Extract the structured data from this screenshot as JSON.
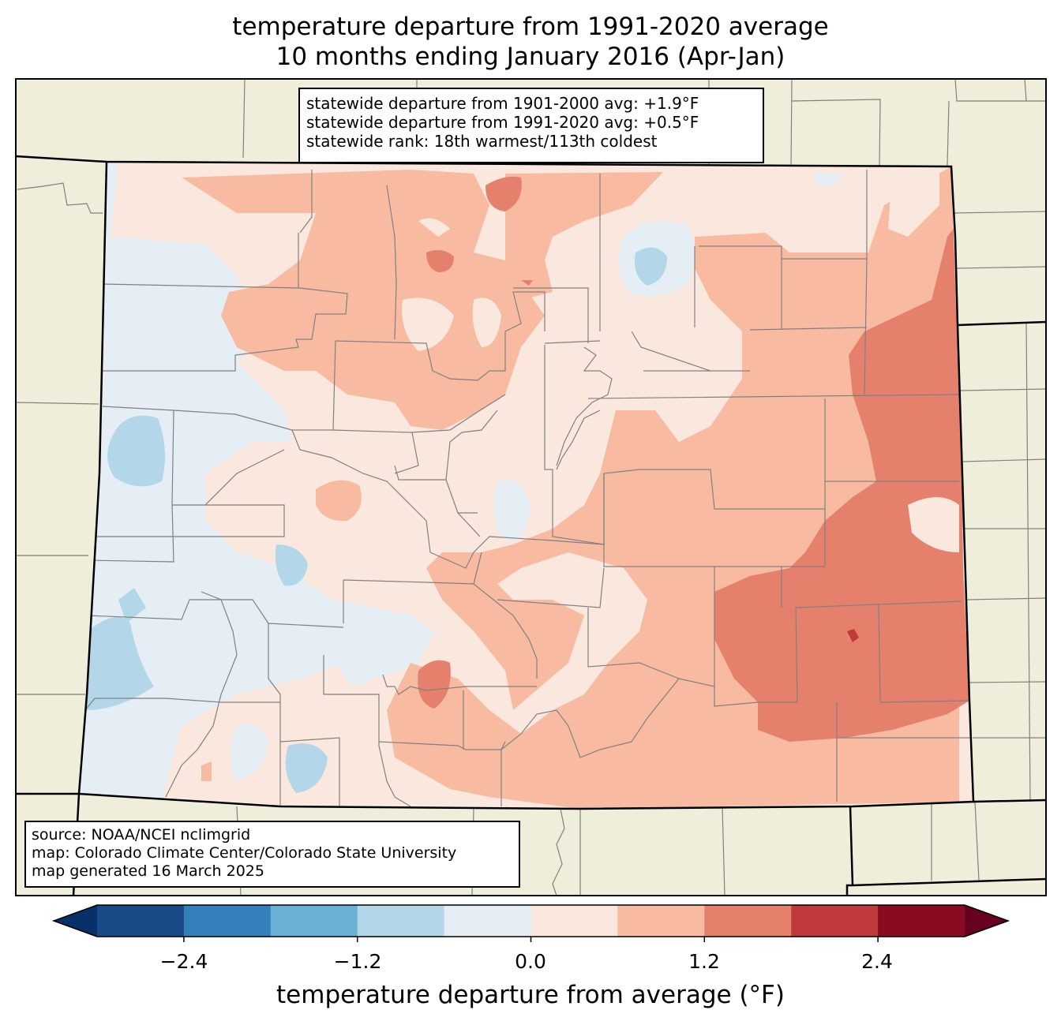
{
  "title": {
    "line1": "temperature departure from 1991-2020 average",
    "line2": "10 months ending January 2016 (Apr-Jan)"
  },
  "stats": {
    "line1": "statewide departure from 1901-2000 avg: +1.9°F",
    "line2": "statewide departure from 1991-2020 avg: +0.5°F",
    "line3": "statewide rank: 18th warmest/113th coldest"
  },
  "source": {
    "line1": "source: NOAA/NCEI nclimgrid",
    "line2": "map: Colorado Climate Center/Colorado State University",
    "line3": "map generated 16 March 2025"
  },
  "colorbar": {
    "label": "temperature departure from average (°F)",
    "ticks": [
      "−2.4",
      "−1.2",
      "0.0",
      "1.2",
      "2.4"
    ],
    "bins": [
      -3.0,
      -2.4,
      -1.8,
      -1.2,
      -0.6,
      0.0,
      0.6,
      1.2,
      1.8,
      2.4,
      3.0
    ],
    "colors": [
      "#08306b",
      "#174a87",
      "#3480ba",
      "#6aafd4",
      "#b3d6e9",
      "#e5eef5",
      "#fae8de",
      "#f8bba1",
      "#e4806b",
      "#c03a3c",
      "#890b21",
      "#670021"
    ]
  },
  "colors": {
    "land_outside": "#efeedb",
    "county_line": "#808080",
    "state_line": "#000000"
  }
}
